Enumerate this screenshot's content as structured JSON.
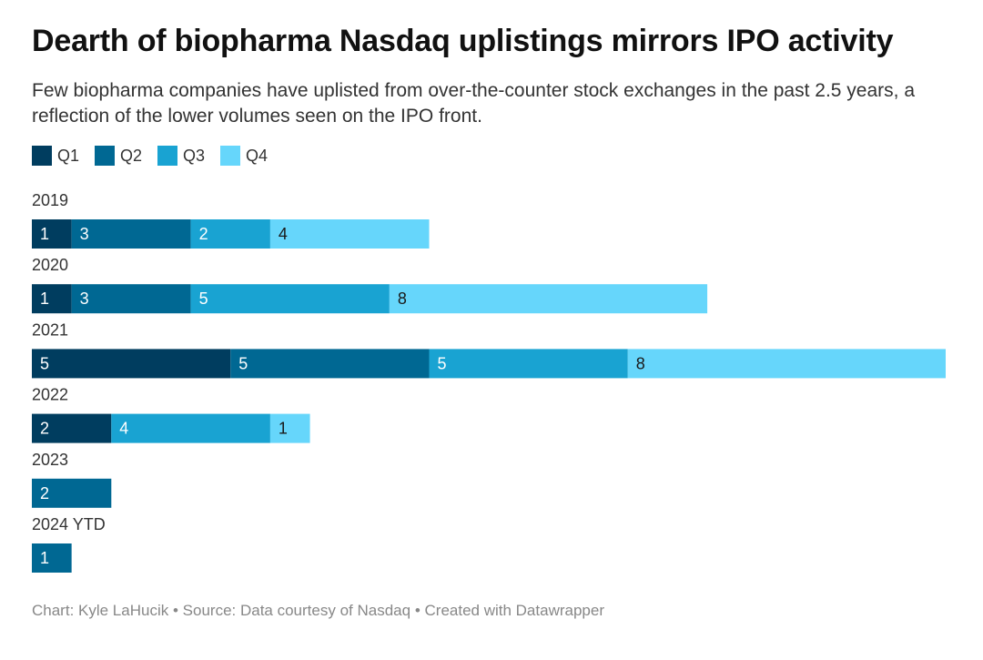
{
  "header": {
    "title": "Dearth of biopharma Nasdaq uplistings mirrors IPO activity",
    "subtitle": "Few biopharma companies have uplisted from over-the-counter stock exchanges in the past 2.5 years, a reflection of the lower volumes seen on the IPO front."
  },
  "footer": {
    "credit_label": "Chart: Kyle LaHucik",
    "source_label": "Source: Data courtesy of Nasdaq",
    "tool_label": "Created with Datawrapper",
    "separator": "•"
  },
  "colors": {
    "Q1": "#003d5f",
    "Q2": "#006893",
    "Q3": "#19a3d2",
    "Q4": "#66d6fb",
    "label_light": "#ffffff",
    "label_dark": "#1a1a1a"
  },
  "chart_data": {
    "type": "bar",
    "orientation": "horizontal",
    "stacked": true,
    "categories": [
      "2019",
      "2020",
      "2021",
      "2022",
      "2023",
      "2024 YTD"
    ],
    "series": [
      {
        "name": "Q1",
        "values": [
          1,
          1,
          5,
          2,
          null,
          null
        ]
      },
      {
        "name": "Q2",
        "values": [
          3,
          3,
          5,
          null,
          2,
          1
        ]
      },
      {
        "name": "Q3",
        "values": [
          2,
          5,
          5,
          4,
          null,
          null
        ]
      },
      {
        "name": "Q4",
        "values": [
          4,
          8,
          8,
          1,
          null,
          null
        ]
      }
    ],
    "xlim": [
      0,
      23
    ],
    "legend_position": "top-left",
    "grid": false
  }
}
